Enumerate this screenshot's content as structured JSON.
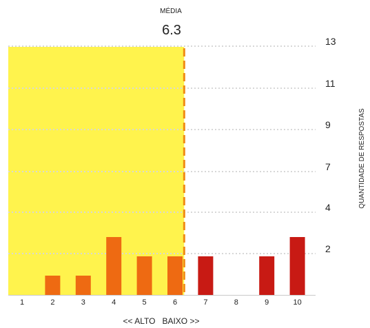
{
  "chart_data": {
    "type": "bar",
    "mean_label": "MÉDIA",
    "mean_value": "6.3",
    "mean": 6.3,
    "categories": [
      "1",
      "2",
      "3",
      "4",
      "5",
      "6",
      "7",
      "8",
      "9",
      "10"
    ],
    "values": [
      0,
      1,
      1,
      3,
      2,
      2,
      2,
      0,
      2,
      3
    ],
    "ylabel": "QUANTIDADE DE RESPOSTAS",
    "yticks": [
      "13",
      "11",
      "9",
      "7",
      "4",
      "2"
    ],
    "xlabel": "<< ALTO   BAIXO >>",
    "highlight_color": "#fff34d",
    "low_bar_color": "#ee6a12",
    "high_bar_color": "#c81a14",
    "grid": true,
    "grid_style": "dotted"
  }
}
